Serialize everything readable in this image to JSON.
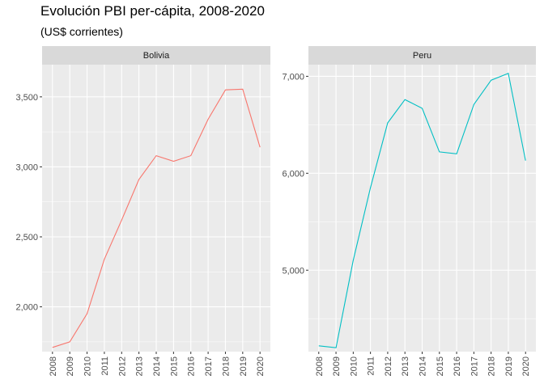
{
  "title": "Evolución PBI per-cápita, 2008-2020",
  "subtitle": "(US$ corrientes)",
  "chart_data": {
    "type": "line",
    "title": "Evolución PBI per-cápita, 2008-2020",
    "subtitle": "(US$ corrientes)",
    "xlabel": "",
    "ylabel": "",
    "grid": true,
    "legend": "none",
    "facet_scales": "free_y",
    "panel_background": "#ebebeb",
    "strip_background": "#d9d9d9",
    "x": [
      2008,
      2009,
      2010,
      2011,
      2012,
      2013,
      2014,
      2015,
      2016,
      2017,
      2018,
      2019,
      2020
    ],
    "x_tick_labels": [
      "2008",
      "2009",
      "2010",
      "2011",
      "2012",
      "2013",
      "2014",
      "2015",
      "2016",
      "2017",
      "2018",
      "2019",
      "2020"
    ],
    "panels": [
      {
        "facet": "Bolivia",
        "color": "#F8766D",
        "ylim": [
          1680,
          3730
        ],
        "y_ticks": [
          2000,
          2500,
          3000,
          3500
        ],
        "y_tick_labels": [
          "2,000",
          "2,500",
          "3,000",
          "3,500"
        ],
        "values": [
          1710,
          1750,
          1950,
          2340,
          2620,
          2910,
          3080,
          3040,
          3080,
          3340,
          3550,
          3555,
          3140
        ]
      },
      {
        "facet": "Peru",
        "color": "#00BFC4",
        "ylim": [
          4160,
          7120
        ],
        "y_ticks": [
          5000,
          6000,
          7000
        ],
        "y_tick_labels": [
          "5,000",
          "6,000",
          "7,000"
        ],
        "values": [
          4220,
          4200,
          5100,
          5850,
          6520,
          6760,
          6670,
          6220,
          6200,
          6710,
          6960,
          7030,
          6130
        ]
      }
    ]
  }
}
